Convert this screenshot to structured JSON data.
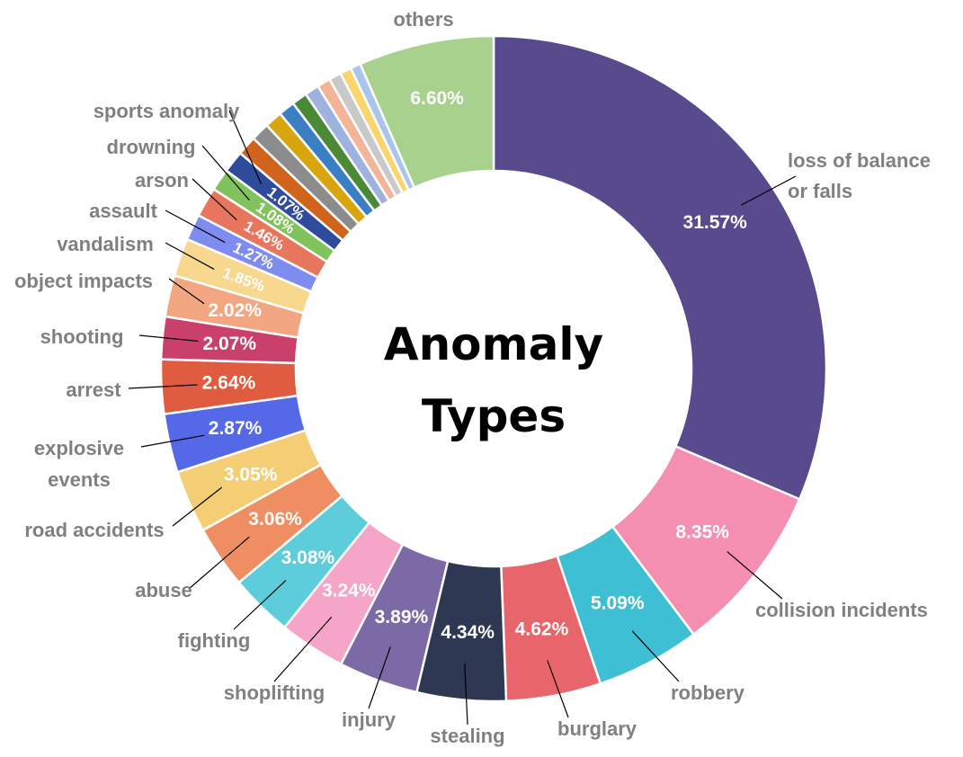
{
  "chart_data": {
    "type": "pie",
    "title": "Anomaly Types",
    "slices": [
      {
        "label": "loss of balance or falls",
        "value": 31.57,
        "display": "31.57%",
        "color": "#574b8e"
      },
      {
        "label": "collision incidents",
        "value": 8.35,
        "display": "8.35%",
        "color": "#f48fb1"
      },
      {
        "label": "robbery",
        "value": 5.09,
        "display": "5.09%",
        "color": "#3fbfd3"
      },
      {
        "label": "burglary",
        "value": 4.62,
        "display": "4.62%",
        "color": "#e8666b"
      },
      {
        "label": "stealing",
        "value": 4.34,
        "display": "4.34%",
        "color": "#2e3853"
      },
      {
        "label": "injury",
        "value": 3.89,
        "display": "3.89%",
        "color": "#7b6aa5"
      },
      {
        "label": "shoplifting",
        "value": 3.24,
        "display": "3.24%",
        "color": "#f5a5c8"
      },
      {
        "label": "fighting",
        "value": 3.08,
        "display": "3.08%",
        "color": "#5ecddb"
      },
      {
        "label": "abuse",
        "value": 3.06,
        "display": "3.06%",
        "color": "#ee8e62"
      },
      {
        "label": "road accidents",
        "value": 3.05,
        "display": "3.05%",
        "color": "#f5cd75"
      },
      {
        "label": "explosive events",
        "value": 2.87,
        "display": "2.87%",
        "color": "#5568e8"
      },
      {
        "label": "arrest",
        "value": 2.64,
        "display": "2.64%",
        "color": "#e05c40"
      },
      {
        "label": "shooting",
        "value": 2.07,
        "display": "2.07%",
        "color": "#c9406a"
      },
      {
        "label": "object impacts",
        "value": 2.02,
        "display": "2.02%",
        "color": "#f2a681"
      },
      {
        "label": "vandalism",
        "value": 1.85,
        "display": "1.85%",
        "color": "#f8d78f"
      },
      {
        "label": "assault",
        "value": 1.27,
        "display": "1.27%",
        "color": "#7e8cf0"
      },
      {
        "label": "arson",
        "value": 1.46,
        "display": "1.46%",
        "color": "#e8765e"
      },
      {
        "label": "drowning",
        "value": 1.08,
        "display": "1.08%",
        "color": "#80c25b"
      },
      {
        "label": "sports anomaly",
        "value": 1.07,
        "display": "1.07%",
        "color": "#2f4c9c"
      },
      {
        "label": "",
        "value": 0.95,
        "display": "",
        "color": "#d1641d"
      },
      {
        "label": "",
        "value": 0.9,
        "display": "",
        "color": "#8c8c8c"
      },
      {
        "label": "",
        "value": 0.85,
        "display": "",
        "color": "#d9a50f"
      },
      {
        "label": "",
        "value": 0.8,
        "display": "",
        "color": "#3a7fc4"
      },
      {
        "label": "",
        "value": 0.75,
        "display": "",
        "color": "#4a8a36"
      },
      {
        "label": "",
        "value": 0.7,
        "display": "",
        "color": "#9db3de"
      },
      {
        "label": "",
        "value": 0.65,
        "display": "",
        "color": "#f2b597"
      },
      {
        "label": "",
        "value": 0.6,
        "display": "",
        "color": "#c9c9c9"
      },
      {
        "label": "",
        "value": 0.55,
        "display": "",
        "color": "#fad46c"
      },
      {
        "label": "",
        "value": 0.5,
        "display": "",
        "color": "#a9c6ea"
      },
      {
        "label": "others",
        "value": 6.6,
        "display": "6.60%",
        "color": "#a8d18d"
      }
    ]
  }
}
